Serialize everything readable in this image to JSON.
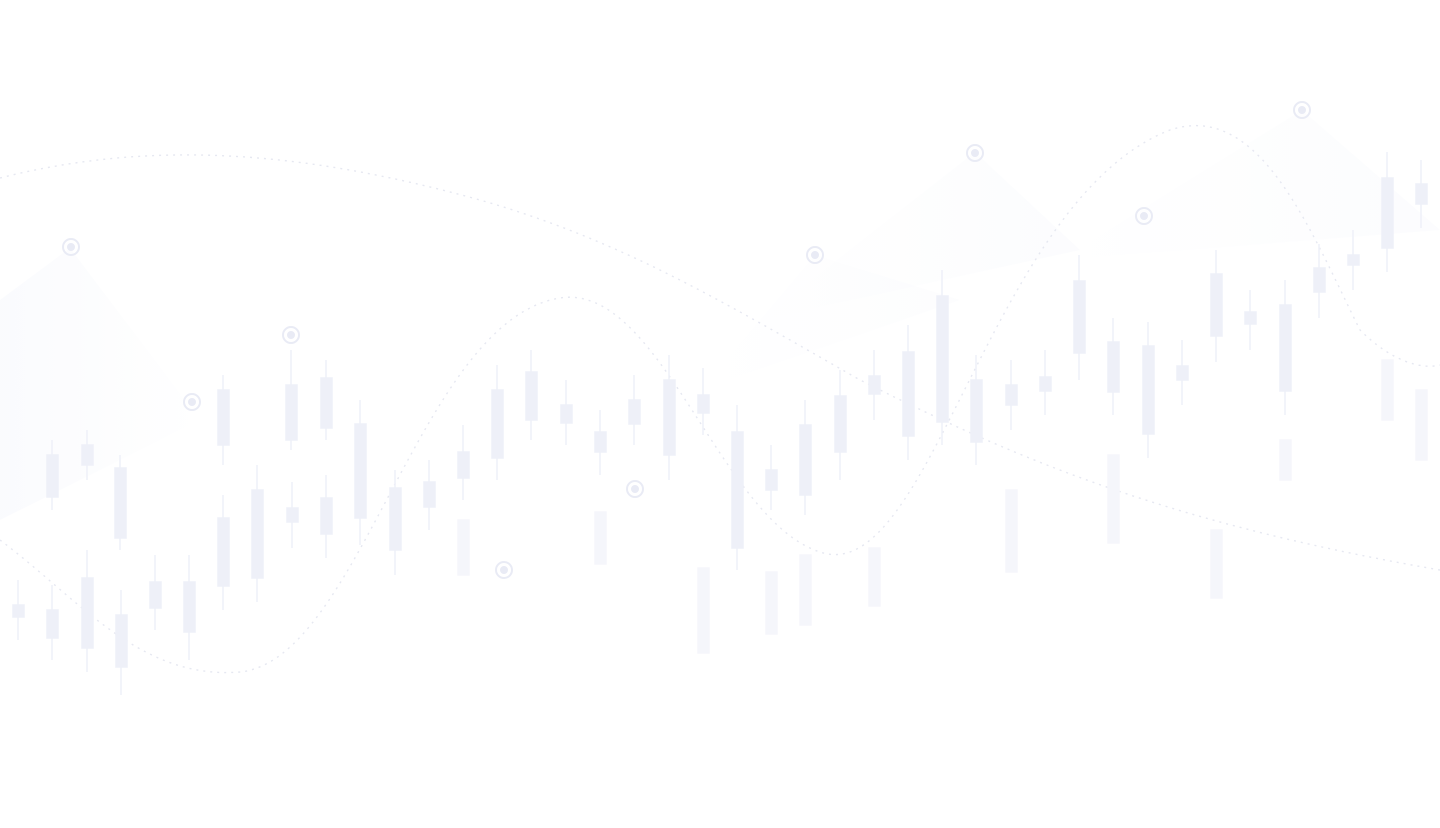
{
  "page": {
    "background": "#ffffff"
  },
  "decoration": {
    "style": "faint candlestick chart with dotted wave lines and ring markers",
    "candle_color": "#ecedf7",
    "wave_color": "#e6e8f1",
    "marker_color": "#e9ebf5",
    "opacity": "very light"
  }
}
